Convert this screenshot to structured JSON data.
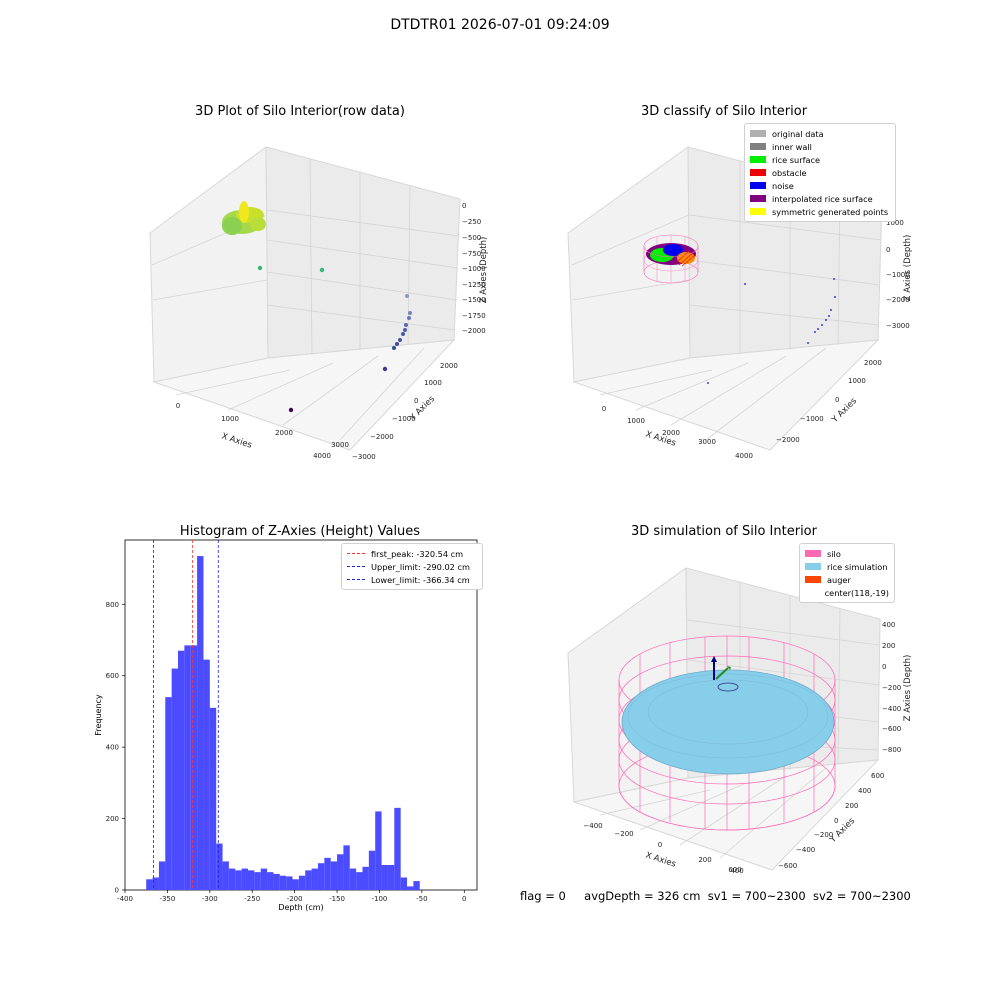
{
  "suptitle": "DTDTR01 2026-07-01 09:24:09",
  "footer": {
    "flag": "flag = 0",
    "avg": "avgDepth = 326 cm",
    "sv1": "sv1 = 700~2300",
    "sv2": "sv2 = 700~2300"
  },
  "chart_data": [
    {
      "type": "scatter",
      "title": "3D Plot of Silo Interior(row data)",
      "xlabel": "X Axies",
      "ylabel": "Y Axies",
      "zlabel": "Z Axies (Depth)",
      "x_ticks": [
        "0",
        "1000",
        "2000",
        "3000",
        "4000"
      ],
      "y_ticks": [
        "−3000",
        "−2000",
        "−1000",
        "0",
        "1000",
        "2000"
      ],
      "z_ticks": [
        "0",
        "−250",
        "−500",
        "−750",
        "−1000",
        "−1250",
        "−1500",
        "−1750",
        "−2000"
      ],
      "colormap": "viridis"
    },
    {
      "type": "scatter",
      "title": "3D classify of Silo Interior",
      "xlabel": "X Axies",
      "ylabel": "Y Axies",
      "zlabel": "Z Axies (Depth)",
      "x_ticks": [
        "0",
        "1000",
        "2000",
        "3000",
        "4000"
      ],
      "y_ticks": [
        "−2000",
        "−1000",
        "0",
        "1000",
        "2000"
      ],
      "z_ticks": [
        "1000",
        "0",
        "−1000",
        "−2000",
        "−3000"
      ],
      "legend": [
        {
          "label": "original data",
          "color": "#b0b0b0"
        },
        {
          "label": "inner wall",
          "color": "#808080"
        },
        {
          "label": "rice surface",
          "color": "#00ee00"
        },
        {
          "label": "obstacle",
          "color": "#ee0000"
        },
        {
          "label": "noise",
          "color": "#0000ee"
        },
        {
          "label": "interpolated rice surface",
          "color": "#800080"
        },
        {
          "label": "symmetric generated points",
          "color": "#ffff00"
        }
      ]
    },
    {
      "type": "bar",
      "title": "Histogram of Z-Axies (Height) Values",
      "xlabel": "Depth (cm)",
      "ylabel": "Frequency",
      "bin_start": -375,
      "bin_width": 7.5,
      "values": [
        30,
        35,
        80,
        540,
        620,
        670,
        685,
        685,
        935,
        645,
        510,
        130,
        80,
        60,
        55,
        60,
        55,
        50,
        60,
        50,
        45,
        40,
        38,
        30,
        40,
        55,
        60,
        75,
        90,
        80,
        100,
        125,
        60,
        50,
        65,
        110,
        220,
        70,
        70,
        230,
        35,
        10,
        25
      ],
      "xlim": [
        -400,
        15
      ],
      "ylim": [
        0,
        980
      ],
      "x_ticks": [
        -400,
        -350,
        -300,
        -250,
        -200,
        -150,
        -100,
        -50,
        0
      ],
      "y_ticks": [
        0,
        200,
        400,
        600,
        800
      ],
      "bar_color": "#4b4bff",
      "vlines": [
        {
          "label": "first_peak: -320.54 cm",
          "x": -320.54,
          "color": "#ff3333"
        },
        {
          "label": "Upper_limit: -290.02 cm",
          "x": -290.02,
          "color": "#2222dd"
        },
        {
          "label": "Lower_limit: -366.34 cm",
          "x": -366.34,
          "color": "#2222dd"
        }
      ],
      "legend_position": "upper right"
    },
    {
      "type": "scatter",
      "title": "3D simulation of Silo Interior",
      "xlabel": "X Axies",
      "ylabel": "Y Axies",
      "zlabel": "Z Axies (Depth)",
      "x_ticks": [
        "−400",
        "−200",
        "0",
        "200",
        "400",
        "600"
      ],
      "y_ticks": [
        "−600",
        "−400",
        "−200",
        "0",
        "200",
        "400",
        "600"
      ],
      "z_ticks": [
        "400",
        "200",
        "0",
        "−200",
        "−400",
        "−600",
        "−800"
      ],
      "legend": [
        {
          "label": "silo",
          "color": "#ff69b4"
        },
        {
          "label": "rice simulation",
          "color": "#87ceeb"
        },
        {
          "label": "auger",
          "color": "#ff4500"
        },
        {
          "label": "center(118,-19)",
          "color": ""
        }
      ]
    }
  ]
}
